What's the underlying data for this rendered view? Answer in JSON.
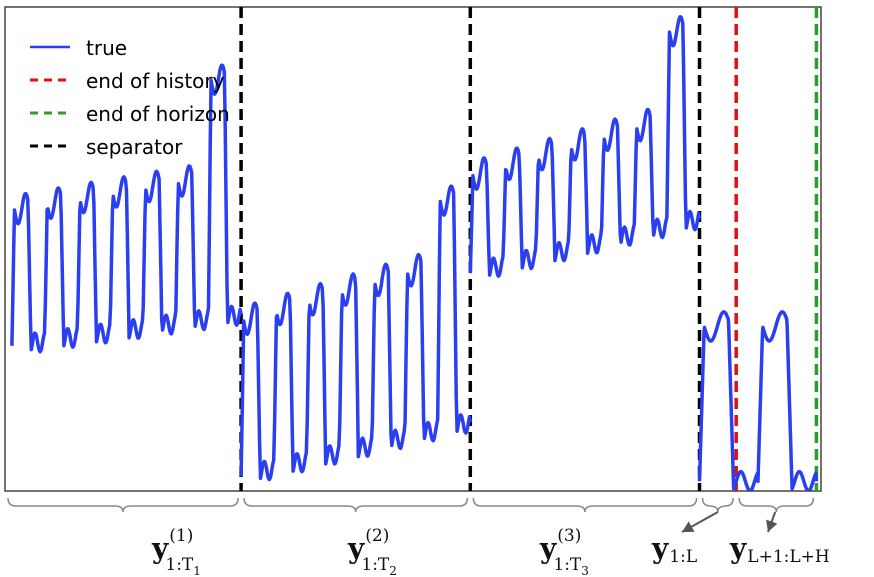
{
  "chart_data": {
    "type": "line",
    "title": "",
    "xlabel": "",
    "ylabel": "",
    "grid": false,
    "legend_placement": "top-left",
    "legend": [
      {
        "label": "true",
        "style": "solid",
        "color": "#2a3ff0"
      },
      {
        "label": "end of history",
        "style": "dashed",
        "color": "#e01010"
      },
      {
        "label": "end of horizon",
        "style": "dashed",
        "color": "#2a9d2a"
      },
      {
        "label": "separator",
        "style": "dashed",
        "color": "#000000"
      }
    ],
    "series": [
      {
        "name": "true",
        "color": "#2a3ff0",
        "segments": [
          {
            "start": 0.0,
            "end": 1.0,
            "low": 0.3,
            "high": 0.58,
            "cycles": 7,
            "rise": 0.08,
            "lastBoost": 0.85
          },
          {
            "start": 1.0,
            "end": 2.0,
            "low": 0.03,
            "high": 0.35,
            "cycles": 7,
            "rise": 0.14,
            "lastBoost": 0.6
          },
          {
            "start": 2.0,
            "end": 3.0,
            "low": 0.45,
            "high": 0.65,
            "cycles": 7,
            "rise": 0.14,
            "lastBoost": 0.95
          },
          {
            "start": 3.0,
            "end": 3.51,
            "low": 0.02,
            "high": 0.34,
            "cycles": 2,
            "rise": 0.0,
            "lastBoost": 0.34
          }
        ]
      }
    ],
    "vlines": [
      {
        "x": 1.0,
        "kind": "separator"
      },
      {
        "x": 2.0,
        "kind": "separator"
      },
      {
        "x": 3.0,
        "kind": "separator"
      },
      {
        "x": 3.16,
        "kind": "end of history"
      },
      {
        "x": 3.51,
        "kind": "end of horizon"
      }
    ],
    "xlim": [
      -0.03,
      3.53
    ],
    "ylim": [
      0,
      1
    ]
  },
  "colors": {
    "line": "#2a3ff0",
    "history": "#e01010",
    "horizon": "#2a9d2a",
    "separator": "#000000",
    "brace": "#888888",
    "arrow": "#555555"
  },
  "segment_labels": [
    {
      "base": "y",
      "sup": "(1)",
      "sub": "1:T",
      "subsub": "1"
    },
    {
      "base": "y",
      "sup": "(2)",
      "sub": "1:T",
      "subsub": "2"
    },
    {
      "base": "y",
      "sup": "(3)",
      "sub": "1:T",
      "subsub": "3"
    },
    {
      "base": "y",
      "sub": "1:L"
    },
    {
      "base": "y",
      "sub": "L+1:L+H"
    }
  ]
}
